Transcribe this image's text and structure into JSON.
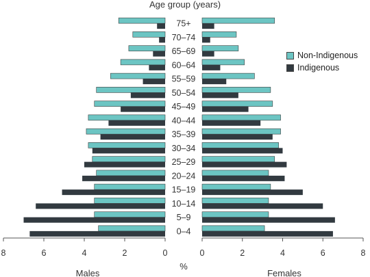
{
  "chart_data": {
    "type": "bar",
    "orientation": "horizontal-population-pyramid",
    "title": "Age group (years)",
    "categories": [
      "0–4",
      "5–9",
      "10–14",
      "15–19",
      "20–24",
      "25–29",
      "30–34",
      "35–39",
      "40–44",
      "45–49",
      "50–54",
      "55–59",
      "60–64",
      "65–69",
      "70–74",
      "75+"
    ],
    "xlabel": "%",
    "left_label": "Males",
    "right_label": "Females",
    "xlim": [
      0,
      8
    ],
    "ticks": [
      "8",
      "6",
      "4",
      "2",
      "0"
    ],
    "ticks_right": [
      "0",
      "2",
      "4",
      "6",
      "8"
    ],
    "legend_position": "right",
    "colors": {
      "non_indigenous": "#6cc5c3",
      "indigenous": "#323a40"
    },
    "series": [
      {
        "name": "Non-Indigenous",
        "side": "male",
        "values": [
          3.3,
          3.5,
          3.5,
          3.5,
          3.4,
          3.6,
          3.8,
          3.9,
          3.8,
          3.5,
          3.4,
          2.7,
          2.2,
          1.8,
          1.6,
          2.3
        ]
      },
      {
        "name": "Indigenous",
        "side": "male",
        "values": [
          6.7,
          7.0,
          6.4,
          5.1,
          4.1,
          4.0,
          3.6,
          3.2,
          2.8,
          2.2,
          1.7,
          1.1,
          0.8,
          0.6,
          0.3,
          0.4
        ]
      },
      {
        "name": "Non-Indigenous",
        "side": "female",
        "values": [
          3.1,
          3.3,
          3.3,
          3.4,
          3.3,
          3.6,
          3.8,
          3.9,
          3.9,
          3.5,
          3.4,
          2.6,
          2.1,
          1.8,
          1.7,
          3.6
        ]
      },
      {
        "name": "Indigenous",
        "side": "female",
        "values": [
          6.5,
          6.6,
          6.0,
          5.0,
          4.1,
          4.2,
          4.0,
          3.5,
          2.9,
          2.3,
          1.8,
          1.2,
          0.9,
          0.6,
          0.4,
          0.6
        ]
      }
    ]
  }
}
